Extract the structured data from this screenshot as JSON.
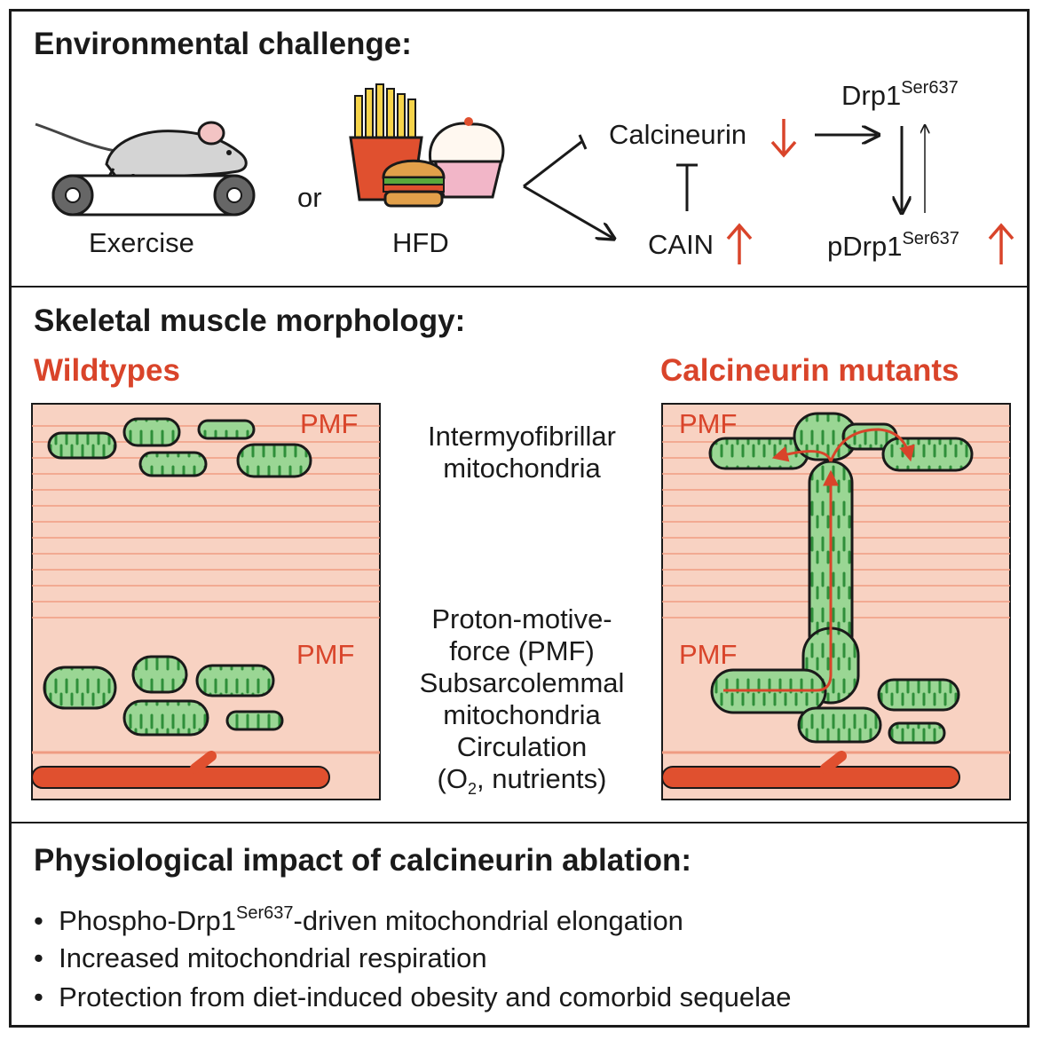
{
  "sections": {
    "environment": {
      "title": "Environmental challenge:"
    },
    "morphology": {
      "title": "Skeletal muscle morphology:"
    },
    "impact": {
      "title": "Physiological impact of calcineurin ablation:"
    }
  },
  "environment": {
    "exercise_label": "Exercise",
    "or_label": "or",
    "hfd_label": "HFD",
    "calcineurin_label": "Calcineurin",
    "cain_label": "CAIN",
    "drp1_label": "Drp1",
    "drp1_sup": "Ser637",
    "pdrp1_label": "pDrp1",
    "pdrp1_sup": "Ser637"
  },
  "morphology": {
    "wildtypes_label": "Wildtypes",
    "mutants_label": "Calcineurin mutants",
    "pmf_label": "PMF",
    "center_labels": {
      "intermyofibrillar_1": "Intermyofibrillar",
      "intermyofibrillar_2": "mitochondria",
      "pmf_1": "Proton-motive-",
      "pmf_2": "force (PMF)",
      "subsarcolemmal_1": "Subsarcolemmal",
      "subsarcolemmal_2": "mitochondria",
      "circulation_1": "Circulation",
      "circulation_2_pre": "(O",
      "circulation_2_sub": "2",
      "circulation_2_post": ", nutrients)"
    }
  },
  "impact": {
    "bullet_symbol": "•",
    "items": [
      {
        "pre": "Phospho-Drp1",
        "sup": "Ser637",
        "post": "-driven mitochondrial elongation"
      },
      {
        "pre": "Increased mitochondrial respiration",
        "sup": "",
        "post": ""
      },
      {
        "pre": "Protection from diet-induced obesity and comorbid sequelae",
        "sup": "",
        "post": ""
      }
    ]
  },
  "colors": {
    "accent_red": "#d9442a",
    "muscle_bg": "#f8d2c2",
    "mito_fill": "#8fd08a",
    "mito_cristae": "#2f8f3a",
    "vessel": "#e0502f"
  }
}
